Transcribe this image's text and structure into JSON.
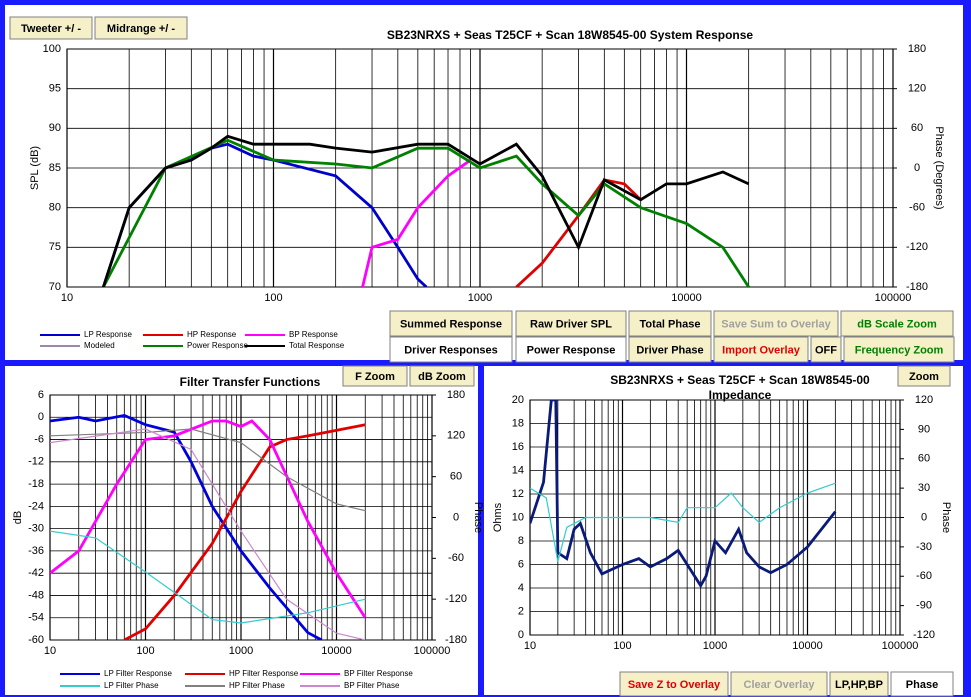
{
  "buttons": [
    {
      "label": "Tweeter +/ -"
    },
    {
      "label": "Midrange  +/ -"
    },
    {
      "label": "Summed Response"
    },
    {
      "label": "Raw Driver SPL"
    },
    {
      "label": "Total Phase"
    },
    {
      "label": "Save Sum to Overlay"
    },
    {
      "label": "dB Scale Zoom"
    },
    {
      "label": "Driver Responses"
    },
    {
      "label": "Power Response"
    },
    {
      "label": "Driver Phase"
    },
    {
      "label": "Import Overlay"
    },
    {
      "label": "OFF"
    },
    {
      "label": "Frequency Zoom"
    },
    {
      "label": "F Zoom"
    },
    {
      "label": "dB Zoom"
    },
    {
      "label": "Zoom"
    },
    {
      "label": "Save Z to Overlay"
    },
    {
      "label": "Clear Overlay"
    },
    {
      "label": "LP,HP,BP"
    },
    {
      "label": "Phase"
    }
  ],
  "chart_data": [
    {
      "type": "line",
      "title": "SB23NRXS + Seas T25CF + Scan 18W8545-00   System Response",
      "y_label": "SPL (dB)",
      "y2_label": "Phase (Degrees)",
      "xscale": "log",
      "grid": true,
      "xlim": [
        10,
        100000
      ],
      "xticks": [
        10,
        100,
        1000,
        10000,
        100000
      ],
      "ylim": [
        70,
        100
      ],
      "yticks": [
        70,
        75,
        80,
        85,
        90,
        95,
        100
      ],
      "y2lim": [
        -180,
        180
      ],
      "y2ticks": [
        -180,
        -120,
        -60,
        0,
        60,
        120,
        180
      ],
      "series": [
        {
          "name": "LP Response",
          "color": "#0000cc",
          "x": [
            15,
            20,
            30,
            50,
            60,
            80,
            100,
            200,
            300,
            400,
            500,
            550
          ],
          "values": [
            70,
            80,
            85,
            87.5,
            88,
            86.5,
            86,
            84,
            80,
            75,
            71,
            70
          ]
        },
        {
          "name": "HP Response",
          "color": "#e00000",
          "x": [
            1500,
            2000,
            3000,
            4000,
            5000,
            6000
          ],
          "values": [
            70,
            73,
            79,
            83.5,
            83,
            81
          ]
        },
        {
          "name": "BP Response",
          "color": "#ff00ff",
          "x": [
            270,
            300,
            400,
            500,
            700,
            900
          ],
          "values": [
            70,
            75,
            76,
            80,
            84,
            86
          ]
        },
        {
          "name": "Modeled",
          "color": "#9a8aa8",
          "x": [],
          "values": []
        },
        {
          "name": "Power Response",
          "color": "#008000",
          "x": [
            15,
            30,
            60,
            100,
            200,
            300,
            500,
            700,
            1000,
            1500,
            2000,
            3000,
            4000,
            6000,
            10000,
            15000,
            20000
          ],
          "values": [
            70,
            85,
            88.5,
            86,
            85.5,
            85,
            87.5,
            87.5,
            85,
            86.5,
            83,
            79,
            83,
            80,
            78,
            75,
            70
          ]
        },
        {
          "name": "Total Response",
          "color": "#000000",
          "x": [
            15,
            20,
            30,
            40,
            50,
            60,
            80,
            100,
            150,
            200,
            300,
            500,
            700,
            1000,
            1500,
            2000,
            3000,
            4000,
            6000,
            8000,
            10000,
            15000,
            20000
          ],
          "values": [
            70,
            80,
            85,
            86,
            87.5,
            89,
            88,
            88,
            88,
            87.5,
            87,
            88,
            88,
            85.5,
            88,
            84,
            75,
            83.5,
            81,
            83,
            83,
            84.5,
            83
          ]
        }
      ]
    },
    {
      "type": "line",
      "title": "Filter Transfer Functions",
      "y_label": "dB",
      "y2_label": "Phase",
      "xscale": "log",
      "grid": true,
      "xlim": [
        10,
        100000
      ],
      "xticks": [
        10,
        100,
        1000,
        10000,
        100000
      ],
      "ylim": [
        -60,
        6
      ],
      "yticks": [
        -60,
        -54,
        -48,
        -42,
        -36,
        -30,
        -24,
        -18,
        -12,
        -6,
        0,
        6
      ],
      "y2lim": [
        -180,
        180
      ],
      "y2ticks": [
        -180,
        -120,
        -60,
        0,
        60,
        120,
        180
      ],
      "series": [
        {
          "name": "LP Filter Response",
          "color": "#0000dd",
          "x": [
            10,
            20,
            30,
            60,
            100,
            200,
            300,
            500,
            1000,
            2000,
            5000,
            7000
          ],
          "values": [
            -1,
            0,
            -1,
            0.5,
            -2,
            -4,
            -12,
            -24,
            -36,
            -46,
            -58,
            -60
          ]
        },
        {
          "name": "HP Filter Response",
          "color": "#e00000",
          "x": [
            60,
            100,
            200,
            500,
            1000,
            2000,
            3000,
            5000,
            20000
          ],
          "values": [
            -60,
            -57,
            -48,
            -34,
            -20,
            -8,
            -6,
            -5,
            -2
          ]
        },
        {
          "name": "BP Filter Response",
          "color": "#ff00ff",
          "x": [
            10,
            20,
            50,
            100,
            200,
            500,
            700,
            1000,
            1300,
            2000,
            5000,
            10000,
            20000
          ],
          "values": [
            -42,
            -36,
            -18,
            -6,
            -5,
            -1,
            -1,
            -2.5,
            -1,
            -6,
            -28,
            -42,
            -54
          ]
        },
        {
          "name": "LP Filter Phase",
          "color": "#33cccc",
          "axis": "y2",
          "x": [
            10,
            30,
            100,
            200,
            500,
            1000,
            5000,
            10000,
            20000
          ],
          "values": [
            -20,
            -30,
            -80,
            -110,
            -150,
            -155,
            -140,
            -130,
            -120
          ]
        },
        {
          "name": "HP Filter Phase",
          "color": "#808080",
          "axis": "y2",
          "x": [
            10,
            100,
            300,
            1000,
            3000,
            10000,
            20000
          ],
          "values": [
            120,
            125,
            130,
            110,
            60,
            20,
            10
          ]
        },
        {
          "name": "BP Filter Phase",
          "color": "#cc88cc",
          "axis": "y2",
          "x": [
            10,
            100,
            300,
            1000,
            3000,
            10000,
            20000
          ],
          "values": [
            110,
            130,
            100,
            -20,
            -120,
            -170,
            -180
          ]
        }
      ]
    },
    {
      "type": "line",
      "title": "SB23NRXS + Seas T25CF + Scan 18W8545-00",
      "subtitle": "Impedance",
      "y_label": "Ohms",
      "y2_label": "Phase",
      "xscale": "log",
      "grid": true,
      "xlim": [
        10,
        100000
      ],
      "xticks": [
        10,
        100,
        1000,
        10000,
        100000
      ],
      "ylim": [
        0,
        20
      ],
      "yticks": [
        0,
        2,
        4,
        6,
        8,
        10,
        12,
        14,
        16,
        18,
        20
      ],
      "y2lim": [
        -120,
        120
      ],
      "y2ticks": [
        -120,
        -90,
        -60,
        -30,
        0,
        30,
        60,
        90,
        120
      ],
      "series": [
        {
          "color": "#0a1a7a",
          "x": [
            10,
            14,
            17,
            19,
            20,
            25,
            30,
            35,
            45,
            60,
            100,
            150,
            200,
            300,
            400,
            500,
            700,
            800,
            1000,
            1300,
            1800,
            2200,
            3000,
            4000,
            6000,
            10000,
            20000
          ],
          "values": [
            9.5,
            13,
            20,
            20,
            7,
            6.5,
            9,
            9.5,
            7,
            5.2,
            6,
            6.5,
            5.8,
            6.5,
            7.2,
            6,
            4.2,
            5,
            8,
            7,
            9,
            7,
            5.8,
            5.3,
            6,
            7.5,
            10.5
          ]
        },
        {
          "color": "#33cccc",
          "axis": "y2",
          "x": [
            10,
            15,
            20,
            25,
            40,
            100,
            200,
            400,
            500,
            1000,
            1500,
            2000,
            3000,
            5000,
            10000,
            20000
          ],
          "values": [
            30,
            20,
            -45,
            -10,
            0,
            0,
            0,
            -5,
            10,
            10,
            25,
            10,
            -5,
            10,
            25,
            35
          ]
        }
      ]
    }
  ]
}
